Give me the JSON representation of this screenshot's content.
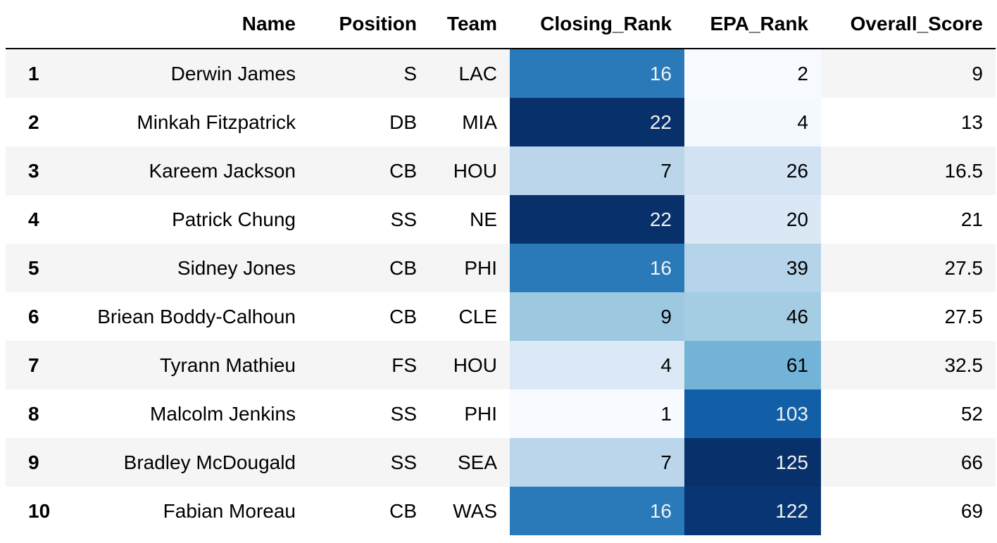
{
  "table": {
    "columns": [
      "",
      "Name",
      "Position",
      "Team",
      "Closing_Rank",
      "EPA_Rank",
      "Overall_Score"
    ],
    "rows": [
      {
        "index": "1",
        "name": "Derwin James",
        "position": "S",
        "team": "LAC",
        "closing_rank": "16",
        "epa_rank": "2",
        "overall_score": "9"
      },
      {
        "index": "2",
        "name": "Minkah Fitzpatrick",
        "position": "DB",
        "team": "MIA",
        "closing_rank": "22",
        "epa_rank": "4",
        "overall_score": "13"
      },
      {
        "index": "3",
        "name": "Kareem Jackson",
        "position": "CB",
        "team": "HOU",
        "closing_rank": "7",
        "epa_rank": "26",
        "overall_score": "16.5"
      },
      {
        "index": "4",
        "name": "Patrick Chung",
        "position": "SS",
        "team": "NE",
        "closing_rank": "22",
        "epa_rank": "20",
        "overall_score": "21"
      },
      {
        "index": "5",
        "name": "Sidney Jones",
        "position": "CB",
        "team": "PHI",
        "closing_rank": "16",
        "epa_rank": "39",
        "overall_score": "27.5"
      },
      {
        "index": "6",
        "name": "Briean Boddy-Calhoun",
        "position": "CB",
        "team": "CLE",
        "closing_rank": "9",
        "epa_rank": "46",
        "overall_score": "27.5"
      },
      {
        "index": "7",
        "name": "Tyrann Mathieu",
        "position": "FS",
        "team": "HOU",
        "closing_rank": "4",
        "epa_rank": "61",
        "overall_score": "32.5"
      },
      {
        "index": "8",
        "name": "Malcolm Jenkins",
        "position": "SS",
        "team": "PHI",
        "closing_rank": "1",
        "epa_rank": "103",
        "overall_score": "52"
      },
      {
        "index": "9",
        "name": "Bradley McDougald",
        "position": "SS",
        "team": "SEA",
        "closing_rank": "7",
        "epa_rank": "125",
        "overall_score": "66"
      },
      {
        "index": "10",
        "name": "Fabian Moreau",
        "position": "CB",
        "team": "WAS",
        "closing_rank": "16",
        "epa_rank": "122",
        "overall_score": "69"
      }
    ]
  },
  "heatmap": {
    "colormap": "Blues",
    "closing_rank": {
      "min": 1,
      "max": 22
    },
    "epa_rank": {
      "min": 2,
      "max": 125
    }
  }
}
